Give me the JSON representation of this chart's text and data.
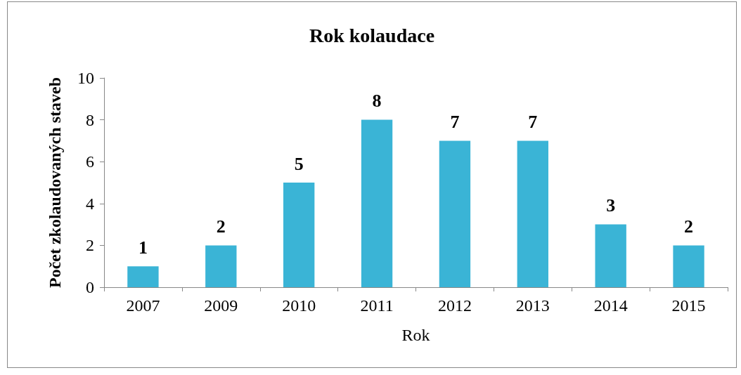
{
  "chart_data": {
    "type": "bar",
    "title": "Rok kolaudace",
    "xlabel": "Rok",
    "ylabel": "Počet zkolaudovaných staveb",
    "categories": [
      "2007",
      "2009",
      "2010",
      "2011",
      "2012",
      "2013",
      "2014",
      "2015"
    ],
    "values": [
      1,
      2,
      5,
      8,
      7,
      7,
      3,
      2
    ],
    "color": "#3ab4d6",
    "ylim": [
      0,
      10
    ],
    "yticks": [
      0,
      2,
      4,
      6,
      8,
      10
    ],
    "grid": false,
    "data_labels": true
  }
}
